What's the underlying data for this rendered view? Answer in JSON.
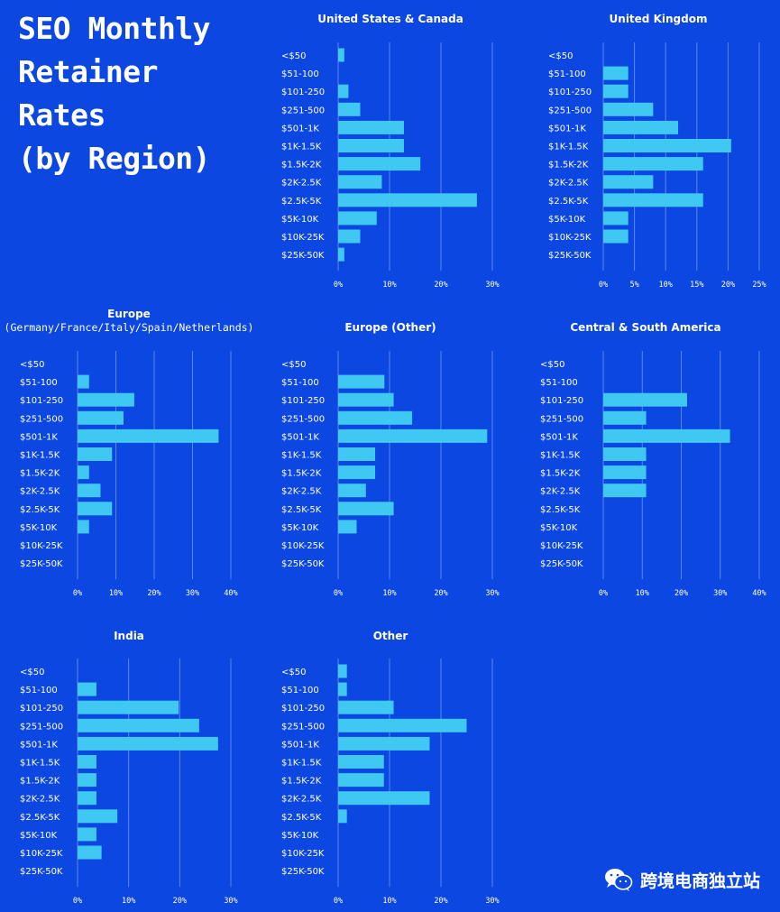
{
  "page_title": "SEO Monthly\nRetainer\nRates\n(by Region)",
  "watermark": {
    "text": "跨境电商独立站",
    "icon": "wechat-icon"
  },
  "colors": {
    "background": "#0b47e0",
    "bar": "#3fc8f2",
    "grid": "#5f86ee",
    "text": "#ffffff"
  },
  "chart_data": [
    {
      "type": "bar",
      "orientation": "horizontal",
      "title": "United States & Canada",
      "categories": [
        "<$50",
        "$51-100",
        "$101-250",
        "$251-500",
        "$501-1K",
        "$1K-1.5K",
        "$1.5K-2K",
        "$2K-2.5K",
        "$2.5K-5K",
        "$5K-10K",
        "$10K-25K",
        "$25K-50K"
      ],
      "values": [
        1.2,
        0,
        2,
        4.3,
        12.8,
        12.8,
        16,
        8.5,
        27,
        7.5,
        4.3,
        1.2
      ],
      "xlim": [
        0,
        30
      ],
      "xticks": [
        0,
        10,
        20,
        30
      ],
      "xtick_labels": [
        "0%",
        "10%",
        "20%",
        "30%"
      ],
      "grid": true
    },
    {
      "type": "bar",
      "orientation": "horizontal",
      "title": "United Kingdom",
      "categories": [
        "<$50",
        "$51-100",
        "$101-250",
        "$251-500",
        "$501-1K",
        "$1K-1.5K",
        "$1.5K-2K",
        "$2K-2.5K",
        "$2.5K-5K",
        "$5K-10K",
        "$10K-25K",
        "$25K-50K"
      ],
      "values": [
        0,
        4,
        4,
        8,
        12,
        20.5,
        16,
        8,
        16,
        4,
        4,
        0
      ],
      "xlim": [
        0,
        25
      ],
      "xticks": [
        0,
        5,
        10,
        15,
        20,
        25
      ],
      "xtick_labels": [
        "0%",
        "5%",
        "10%",
        "15%",
        "20%",
        "25%"
      ],
      "grid": true
    },
    {
      "type": "bar",
      "orientation": "horizontal",
      "title": "Europe",
      "subtitle": "(Germany/France/Italy/Spain/Netherlands)",
      "categories": [
        "<$50",
        "$51-100",
        "$101-250",
        "$251-500",
        "$501-1K",
        "$1K-1.5K",
        "$1.5K-2K",
        "$2K-2.5K",
        "$2.5K-5K",
        "$5K-10K",
        "$10K-25K",
        "$25K-50K"
      ],
      "values": [
        0,
        3,
        14.8,
        12,
        36.8,
        9,
        3,
        6,
        9,
        3,
        0,
        0
      ],
      "xlim": [
        0,
        40
      ],
      "xticks": [
        0,
        10,
        20,
        30,
        40
      ],
      "xtick_labels": [
        "0%",
        "10%",
        "20%",
        "30%",
        "40%"
      ],
      "grid": true
    },
    {
      "type": "bar",
      "orientation": "horizontal",
      "title": "Europe (Other)",
      "categories": [
        "<$50",
        "$51-100",
        "$101-250",
        "$251-500",
        "$501-1K",
        "$1K-1.5K",
        "$1.5K-2K",
        "$2K-2.5K",
        "$2.5K-5K",
        "$5K-10K",
        "$10K-25K",
        "$25K-50K"
      ],
      "values": [
        0,
        9,
        10.8,
        14.4,
        29,
        7.2,
        7.2,
        5.4,
        10.8,
        3.6,
        0,
        0
      ],
      "xlim": [
        0,
        30
      ],
      "xticks": [
        0,
        10,
        20,
        30
      ],
      "xtick_labels": [
        "0%",
        "10%",
        "20%",
        "30%"
      ],
      "grid": true
    },
    {
      "type": "bar",
      "orientation": "horizontal",
      "title": "Central & South America",
      "categories": [
        "<$50",
        "$51-100",
        "$101-250",
        "$251-500",
        "$501-1K",
        "$1K-1.5K",
        "$1.5K-2K",
        "$2K-2.5K",
        "$2.5K-5K",
        "$5K-10K",
        "$10K-25K",
        "$25K-50K"
      ],
      "values": [
        0,
        0,
        21.5,
        11,
        32.5,
        11,
        11,
        11,
        0,
        0,
        0,
        0
      ],
      "xlim": [
        0,
        40
      ],
      "xticks": [
        0,
        10,
        20,
        30,
        40
      ],
      "xtick_labels": [
        "0%",
        "10%",
        "20%",
        "30%",
        "40%"
      ],
      "grid": true
    },
    {
      "type": "bar",
      "orientation": "horizontal",
      "title": "India",
      "categories": [
        "<$50",
        "$51-100",
        "$101-250",
        "$251-500",
        "$501-1K",
        "$1K-1.5K",
        "$1.5K-2K",
        "$2K-2.5K",
        "$2.5K-5K",
        "$5K-10K",
        "$10K-25K",
        "$25K-50K"
      ],
      "values": [
        0,
        3.7,
        19.8,
        23.8,
        27.5,
        3.7,
        3.7,
        3.7,
        7.8,
        3.7,
        4.7,
        0
      ],
      "xlim": [
        0,
        30
      ],
      "xticks": [
        0,
        10,
        20,
        30
      ],
      "xtick_labels": [
        "0%",
        "10%",
        "20%",
        "30%"
      ],
      "grid": true
    },
    {
      "type": "bar",
      "orientation": "horizontal",
      "title": "Other",
      "categories": [
        "<$50",
        "$51-100",
        "$101-250",
        "$251-500",
        "$501-1K",
        "$1K-1.5K",
        "$1.5K-2K",
        "$2K-2.5K",
        "$2.5K-5K",
        "$5K-10K",
        "$10K-25K",
        "$25K-50K"
      ],
      "values": [
        1.7,
        1.7,
        10.8,
        25,
        17.8,
        8.9,
        8.9,
        17.8,
        1.7,
        0,
        0,
        0
      ],
      "xlim": [
        0,
        30
      ],
      "xticks": [
        0,
        10,
        20,
        30
      ],
      "xtick_labels": [
        "0%",
        "10%",
        "20%",
        "30%"
      ],
      "grid": true
    }
  ]
}
